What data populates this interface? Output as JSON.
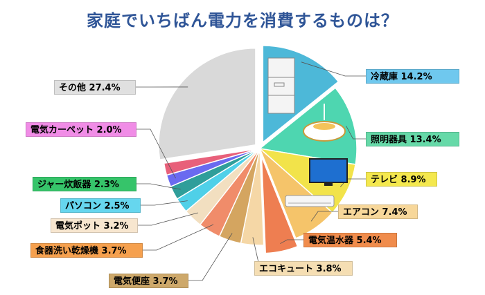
{
  "chart_data": {
    "type": "pie",
    "title": "家庭でいちばん電力を消費するものは？",
    "slices": [
      {
        "name": "冷蔵庫",
        "value": 14.2,
        "text": "冷蔵庫 14.2%",
        "color": "#4DB8D8",
        "label_color": "#6FC8EE",
        "exploded": true
      },
      {
        "name": "照明器具",
        "value": 13.4,
        "text": "照明器具 13.4%",
        "color": "#4ED6B0",
        "label_color": "#66D9A8",
        "exploded": false
      },
      {
        "name": "テレビ",
        "value": 8.9,
        "text": "テレビ 8.9%",
        "color": "#F2E34A",
        "label_color": "#F4E84E",
        "exploded": false
      },
      {
        "name": "エアコン",
        "value": 7.4,
        "text": "エアコン 7.4%",
        "color": "#F5C46A",
        "label_color": "#F7D79A",
        "exploded": false
      },
      {
        "name": "電気温水器",
        "value": 5.4,
        "text": "電気温水器 5.4%",
        "color": "#EE7E51",
        "label_color": "#F08C4C",
        "exploded": true
      },
      {
        "name": "エコキュート",
        "value": 3.8,
        "text": "エコキュート 3.8%",
        "color": "#F5D7A6",
        "label_color": "#F5DEB3",
        "exploded": false
      },
      {
        "name": "電気便座",
        "value": 3.7,
        "text": "電気便座 3.7%",
        "color": "#D4A560",
        "label_color": "#CDA86A",
        "exploded": false
      },
      {
        "name": "食器洗い乾燥機",
        "value": 3.7,
        "text": "食器洗い乾燥機 3.7%",
        "color": "#F08C6A",
        "label_color": "#F5A04E",
        "exploded": false
      },
      {
        "name": "電気ポット",
        "value": 3.2,
        "text": "電気ポット 3.2%",
        "color": "#F2DFC0",
        "label_color": "#F7E6CF",
        "exploded": false
      },
      {
        "name": "パソコン",
        "value": 2.5,
        "text": "パソコン 2.5%",
        "color": "#4FD0E8",
        "label_color": "#66D6EE",
        "exploded": false
      },
      {
        "name": "ジャー炊飯器",
        "value": 2.3,
        "text": "ジャー炊飯器 2.3%",
        "color": "#2F9E9A",
        "label_color": "#36C46A",
        "exploded": false
      },
      {
        "name": "電気カーペット",
        "value": 2.0,
        "text": "電気カーペット 2.0%",
        "color": "#6A6AF0",
        "label_color": "#F08CE6",
        "exploded": false
      },
      {
        "name": "電気カーペット2",
        "value": 2.0,
        "text": "",
        "color": "#E8607A",
        "label_color": "",
        "exploded": false
      },
      {
        "name": "その他",
        "value": 27.4,
        "text": "その他 27.4%",
        "color": "#D9D9D9",
        "label_color": "#E0E0E0",
        "exploded": true
      }
    ]
  }
}
